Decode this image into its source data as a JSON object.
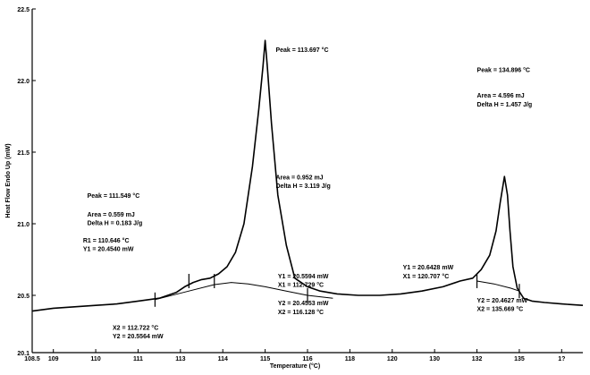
{
  "chart_data": {
    "type": "line",
    "title": "",
    "xlabel": "Temperature (°C)",
    "ylabel": "Heat Flow Endo Up (mW)",
    "xlim": [
      108.5,
      121.5
    ],
    "ylim": [
      20.1,
      22.5
    ],
    "grid": false,
    "x_ticks": [
      108.5,
      109,
      110,
      111,
      112,
      113,
      114,
      115,
      116,
      117,
      118,
      119,
      120,
      121
    ],
    "x_tick_labels": [
      "108.5",
      "109",
      "110",
      "111",
      "113",
      "114",
      "115",
      "116",
      "118",
      "120",
      "130",
      "132",
      "135",
      "1?"
    ],
    "y_ticks": [
      20.1,
      20.5,
      21.0,
      21.5,
      22.0,
      22.5
    ],
    "y_tick_labels": [
      "20.1",
      "20.5",
      "21.0",
      "21.5",
      "22.0",
      "22.5"
    ],
    "series": [
      {
        "x": [
          108.5,
          109.0,
          109.5,
          110.0,
          110.5,
          111.0,
          111.5,
          111.9,
          112.1,
          112.3,
          112.5,
          112.7,
          112.9,
          113.1,
          113.3,
          113.5,
          113.7,
          113.85,
          113.95,
          114.0,
          114.05,
          114.15,
          114.3,
          114.5,
          114.7,
          115.0,
          115.3,
          115.7,
          116.2,
          116.7,
          117.2,
          117.7,
          118.2,
          118.6,
          118.9,
          119.1,
          119.3,
          119.45,
          119.55,
          119.65,
          119.72,
          119.78,
          119.85,
          119.95,
          120.1,
          120.3,
          120.6,
          121.0,
          121.5
        ],
        "y": [
          20.39,
          20.41,
          20.42,
          20.43,
          20.44,
          20.46,
          20.48,
          20.52,
          20.56,
          20.59,
          20.61,
          20.62,
          20.65,
          20.7,
          20.8,
          21.0,
          21.4,
          21.8,
          22.1,
          22.28,
          22.1,
          21.7,
          21.2,
          20.85,
          20.62,
          20.56,
          20.53,
          20.51,
          20.5,
          20.5,
          20.51,
          20.53,
          20.56,
          20.6,
          20.62,
          20.68,
          20.78,
          20.95,
          21.15,
          21.33,
          21.2,
          20.95,
          20.7,
          20.55,
          20.48,
          20.46,
          20.45,
          20.44,
          20.43
        ]
      }
    ],
    "baselines": [
      {
        "x": [
          111.4,
          112.2,
          112.8,
          113.2,
          113.6,
          114.0,
          114.5,
          115.0,
          115.6
        ],
        "y": [
          20.47,
          20.53,
          20.575,
          20.59,
          20.58,
          20.56,
          20.53,
          20.5,
          20.48
        ]
      },
      {
        "x": [
          119.0,
          119.4,
          119.8,
          120.0
        ],
        "y": [
          20.6,
          20.58,
          20.55,
          20.53
        ]
      }
    ],
    "tick_marks": [
      {
        "x": 111.4,
        "y": 20.47
      },
      {
        "x": 112.2,
        "y": 20.6
      },
      {
        "x": 112.8,
        "y": 20.6
      },
      {
        "x": 115.0,
        "y": 20.5
      },
      {
        "x": 119.0,
        "y": 20.6
      },
      {
        "x": 120.0,
        "y": 20.53
      }
    ],
    "annotations": [
      {
        "text": "Peak = 113.697 °C",
        "x": 114.25,
        "y": 22.2
      },
      {
        "text": "Peak = 134.896 °C",
        "x": 119.0,
        "y": 22.06
      },
      {
        "text": "Area = 4.596 mJ",
        "x": 119.0,
        "y": 21.88
      },
      {
        "text": "Delta H = 1.457 J/g",
        "x": 119.0,
        "y": 21.82
      },
      {
        "text": "Area = 0.952 mJ",
        "x": 114.25,
        "y": 21.31
      },
      {
        "text": "Delta H = 3.119 J/g",
        "x": 114.25,
        "y": 21.25
      },
      {
        "text": "Peak = 111.549 °C",
        "x": 109.8,
        "y": 21.18
      },
      {
        "text": "Area = 0.559 mJ",
        "x": 109.8,
        "y": 21.05
      },
      {
        "text": "Delta H = 0.183 J/g",
        "x": 109.8,
        "y": 20.99
      },
      {
        "text": "R1 = 110.646 °C",
        "x": 109.7,
        "y": 20.87
      },
      {
        "text": "Y1 = 20.4540 mW",
        "x": 109.7,
        "y": 20.81
      },
      {
        "text": "Y1 = 20.5594 mW",
        "x": 114.3,
        "y": 20.62
      },
      {
        "text": "X1 = 112.729 °C",
        "x": 114.3,
        "y": 20.56
      },
      {
        "text": "Y1 = 20.6428 mW",
        "x": 117.25,
        "y": 20.68
      },
      {
        "text": "X1 = 120.707 °C",
        "x": 117.25,
        "y": 20.62
      },
      {
        "text": "Y2 = 20.4553 mW",
        "x": 114.3,
        "y": 20.43
      },
      {
        "text": "X2 = 116.128 °C",
        "x": 114.3,
        "y": 20.37
      },
      {
        "text": "Y2 = 20.4627 mW",
        "x": 119.0,
        "y": 20.45
      },
      {
        "text": "X2 = 135.669 °C",
        "x": 119.0,
        "y": 20.39
      },
      {
        "text": "X2 = 112.722 °C",
        "x": 110.4,
        "y": 20.26
      },
      {
        "text": "Y2 = 20.5564 mW",
        "x": 110.4,
        "y": 20.2
      }
    ]
  }
}
